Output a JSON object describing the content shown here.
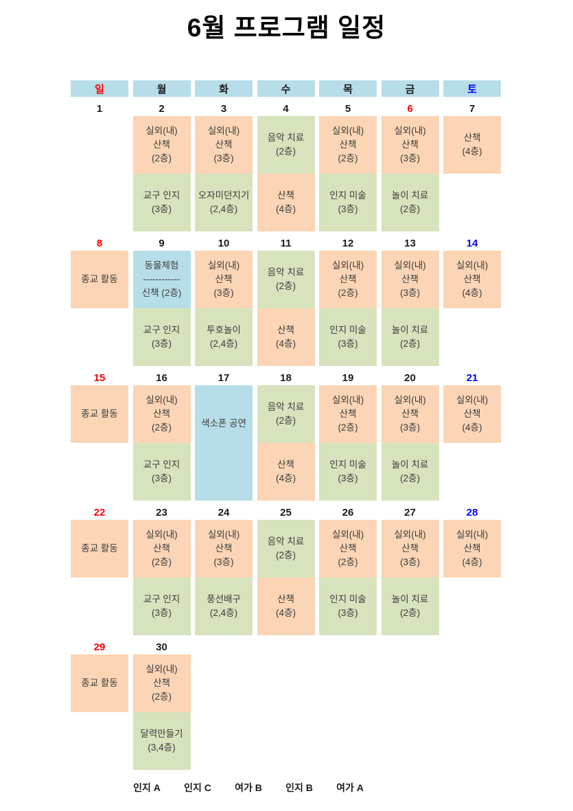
{
  "page": {
    "title": "6월 프로그램 일정"
  },
  "colors": {
    "header_bg": "#B7DEE8",
    "orange": "#FBD5B5",
    "green": "#D6E3BC",
    "blue": "#B7DEE8",
    "date_default": "#1A1A1A",
    "red": "#FF0000",
    "sat_blue": "#0000FF",
    "activity_text": "#3B3B3B"
  },
  "weekday_header": [
    {
      "label": "일",
      "color": "#FF0000"
    },
    {
      "label": "월",
      "color": "#1A1A1A"
    },
    {
      "label": "화",
      "color": "#1A1A1A"
    },
    {
      "label": "수",
      "color": "#1A1A1A"
    },
    {
      "label": "목",
      "color": "#1A1A1A"
    },
    {
      "label": "금",
      "color": "#1A1A1A"
    },
    {
      "label": "토",
      "color": "#0000FF"
    }
  ],
  "weeks": [
    {
      "days": [
        {
          "date": "1"
        },
        {
          "date": "2",
          "cells": [
            {
              "bg": "orange",
              "span": "top",
              "lines": [
                "실외(내)",
                "산책",
                "(2층)"
              ]
            },
            {
              "bg": "green",
              "span": "bottom",
              "lines": [
                "교구 인지",
                "(3층)"
              ]
            }
          ]
        },
        {
          "date": "3",
          "cells": [
            {
              "bg": "orange",
              "span": "top",
              "lines": [
                "실외(내)",
                "산책",
                "(3층)"
              ]
            },
            {
              "bg": "green",
              "span": "bottom",
              "lines": [
                "오자미던지기",
                "(2,4층)"
              ]
            }
          ]
        },
        {
          "date": "4",
          "cells": [
            {
              "bg": "green",
              "span": "top",
              "lines": [
                "음악 치료",
                "(2층)"
              ]
            },
            {
              "bg": "orange",
              "span": "bottom",
              "lines": [
                "산책",
                "(4층)"
              ]
            }
          ]
        },
        {
          "date": "5",
          "cells": [
            {
              "bg": "orange",
              "span": "top",
              "lines": [
                "실외(내)",
                "산책",
                "(2층)"
              ]
            },
            {
              "bg": "green",
              "span": "bottom",
              "lines": [
                "인지 미술",
                "(3층)"
              ]
            }
          ]
        },
        {
          "date": "6",
          "color": "#FF0000",
          "cells": [
            {
              "bg": "orange",
              "span": "top",
              "lines": [
                "실외(내)",
                "산책",
                "(3층)"
              ]
            },
            {
              "bg": "green",
              "span": "bottom",
              "lines": [
                "놀이 치료",
                "(2층)"
              ]
            }
          ]
        },
        {
          "date": "7",
          "cells": [
            {
              "bg": "orange",
              "span": "top",
              "lines": [
                "산책",
                "(4층)"
              ]
            }
          ]
        }
      ]
    },
    {
      "days": [
        {
          "date": "8",
          "color": "#FF0000",
          "cells": [
            {
              "bg": "orange",
              "span": "top",
              "lines": [
                "종교 활동"
              ]
            }
          ]
        },
        {
          "date": "9",
          "cells": [
            {
              "bg": "blue",
              "span": "top",
              "lines": [
                "동물체험",
                "------------",
                "신책 (2층)"
              ]
            },
            {
              "bg": "green",
              "span": "bottom",
              "lines": [
                "교구 인지",
                "(3층)"
              ]
            }
          ]
        },
        {
          "date": "10",
          "cells": [
            {
              "bg": "orange",
              "span": "top",
              "lines": [
                "실외(내)",
                "산책",
                "(3층)"
              ]
            },
            {
              "bg": "green",
              "span": "bottom",
              "lines": [
                "투호놀이",
                "(2,4층)"
              ]
            }
          ]
        },
        {
          "date": "11",
          "cells": [
            {
              "bg": "green",
              "span": "top",
              "lines": [
                "음악 치료",
                "(2층)"
              ]
            },
            {
              "bg": "orange",
              "span": "bottom",
              "lines": [
                "산책",
                "(4층)"
              ]
            }
          ]
        },
        {
          "date": "12",
          "cells": [
            {
              "bg": "orange",
              "span": "top",
              "lines": [
                "실외(내)",
                "산책",
                "(2층)"
              ]
            },
            {
              "bg": "green",
              "span": "bottom",
              "lines": [
                "인지 미술",
                "(3층)"
              ]
            }
          ]
        },
        {
          "date": "13",
          "cells": [
            {
              "bg": "orange",
              "span": "top",
              "lines": [
                "실외(내)",
                "산책",
                "(3층)"
              ]
            },
            {
              "bg": "green",
              "span": "bottom",
              "lines": [
                "놀이 치료",
                "(2층)"
              ]
            }
          ]
        },
        {
          "date": "14",
          "color": "#0000FF",
          "cells": [
            {
              "bg": "orange",
              "span": "top",
              "lines": [
                "실외(내)",
                "산책",
                "(4층)"
              ]
            }
          ]
        }
      ]
    },
    {
      "days": [
        {
          "date": "15",
          "color": "#FF0000",
          "cells": [
            {
              "bg": "orange",
              "span": "top",
              "lines": [
                "종교 활동"
              ]
            }
          ]
        },
        {
          "date": "16",
          "cells": [
            {
              "bg": "orange",
              "span": "top",
              "lines": [
                "실외(내)",
                "산책",
                "(2층)"
              ]
            },
            {
              "bg": "green",
              "span": "bottom",
              "lines": [
                "교구 인지",
                "(3층)"
              ]
            }
          ]
        },
        {
          "date": "17",
          "cells": [
            {
              "bg": "blue",
              "span": "full",
              "lines": [
                "색소폰 공연"
              ]
            }
          ]
        },
        {
          "date": "18",
          "cells": [
            {
              "bg": "green",
              "span": "top",
              "lines": [
                "음악 치료",
                "(2층)"
              ]
            },
            {
              "bg": "orange",
              "span": "bottom",
              "lines": [
                "산책",
                "(4층)"
              ]
            }
          ]
        },
        {
          "date": "19",
          "cells": [
            {
              "bg": "orange",
              "span": "top",
              "lines": [
                "실외(내)",
                "산책",
                "(2층)"
              ]
            },
            {
              "bg": "green",
              "span": "bottom",
              "lines": [
                "인지 미술",
                "(3층)"
              ]
            }
          ]
        },
        {
          "date": "20",
          "cells": [
            {
              "bg": "orange",
              "span": "top",
              "lines": [
                "실외(내)",
                "산책",
                "(3층)"
              ]
            },
            {
              "bg": "green",
              "span": "bottom",
              "lines": [
                "놀이 치료",
                "(2층)"
              ]
            }
          ]
        },
        {
          "date": "21",
          "color": "#0000FF",
          "cells": [
            {
              "bg": "orange",
              "span": "top",
              "lines": [
                "실외(내)",
                "산책",
                "(4층)"
              ]
            }
          ]
        }
      ]
    },
    {
      "days": [
        {
          "date": "22",
          "color": "#FF0000",
          "cells": [
            {
              "bg": "orange",
              "span": "top",
              "lines": [
                "종교 활동"
              ]
            }
          ]
        },
        {
          "date": "23",
          "cells": [
            {
              "bg": "orange",
              "span": "top",
              "lines": [
                "실외(내)",
                "산책",
                "(2층)"
              ]
            },
            {
              "bg": "green",
              "span": "bottom",
              "lines": [
                "교구 인지",
                "(3층)"
              ]
            }
          ]
        },
        {
          "date": "24",
          "cells": [
            {
              "bg": "orange",
              "span": "top",
              "lines": [
                "실외(내)",
                "산책",
                "(3층)"
              ]
            },
            {
              "bg": "green",
              "span": "bottom",
              "lines": [
                "풍선배구",
                "(2,4층)"
              ]
            }
          ]
        },
        {
          "date": "25",
          "cells": [
            {
              "bg": "green",
              "span": "top",
              "lines": [
                "음악 치료",
                "(2층)"
              ]
            },
            {
              "bg": "orange",
              "span": "bottom",
              "lines": [
                "산책",
                "(4층)"
              ]
            }
          ]
        },
        {
          "date": "26",
          "cells": [
            {
              "bg": "orange",
              "span": "top",
              "lines": [
                "실외(내)",
                "산책",
                "(2층)"
              ]
            },
            {
              "bg": "green",
              "span": "bottom",
              "lines": [
                "인지 미술",
                "(3층)"
              ]
            }
          ]
        },
        {
          "date": "27",
          "cells": [
            {
              "bg": "orange",
              "span": "top",
              "lines": [
                "실외(내)",
                "산책",
                "(3층)"
              ]
            },
            {
              "bg": "green",
              "span": "bottom",
              "lines": [
                "놀이 치료",
                "(2층)"
              ]
            }
          ]
        },
        {
          "date": "28",
          "color": "#0000FF",
          "cells": [
            {
              "bg": "orange",
              "span": "top",
              "lines": [
                "실외(내)",
                "산책",
                "(4층)"
              ]
            }
          ]
        }
      ]
    },
    {
      "days": [
        {
          "date": "29",
          "color": "#FF0000",
          "cells": [
            {
              "bg": "orange",
              "span": "top",
              "lines": [
                "종교 활동"
              ]
            }
          ]
        },
        {
          "date": "30",
          "cells": [
            {
              "bg": "orange",
              "span": "top",
              "lines": [
                "실외(내)",
                "산책",
                "(2층)"
              ]
            },
            {
              "bg": "green",
              "span": "bottom",
              "lines": [
                "달력만들기",
                "(3,4층)"
              ]
            }
          ]
        },
        {
          "date": ""
        },
        {
          "date": ""
        },
        {
          "date": ""
        },
        {
          "date": ""
        },
        {
          "date": ""
        }
      ]
    }
  ],
  "footer_labels": [
    "인지 A",
    "인지 C",
    "여가 B",
    "인지 B",
    "여가 A"
  ]
}
